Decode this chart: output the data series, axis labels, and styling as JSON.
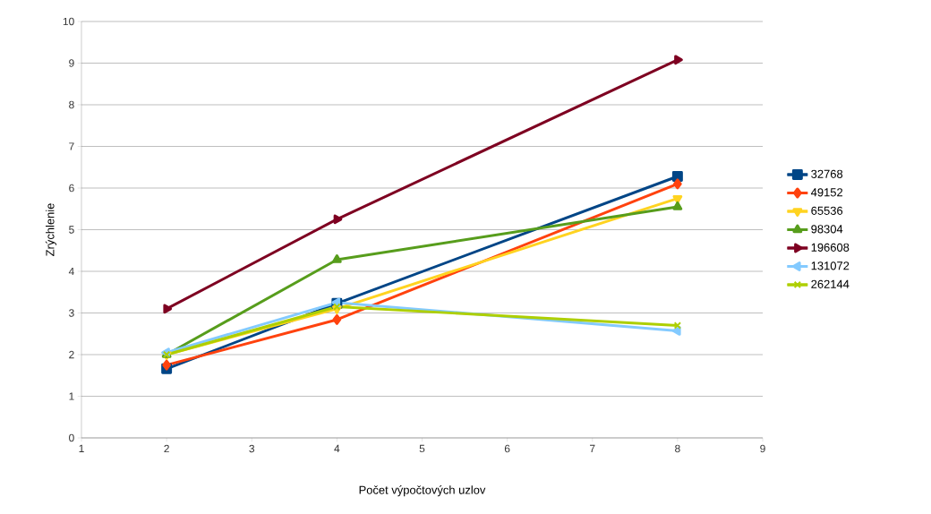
{
  "chart_data": {
    "type": "line",
    "xlabel": "Počet výpočtových uzlov",
    "ylabel": "Zrýchlenie",
    "x": [
      2,
      4,
      8
    ],
    "series": [
      {
        "name": "32768",
        "color": "#004586",
        "marker": "square",
        "values": [
          1.66,
          3.23,
          6.28
        ]
      },
      {
        "name": "49152",
        "color": "#ff420e",
        "marker": "diamond",
        "values": [
          1.75,
          2.84,
          6.1
        ]
      },
      {
        "name": "65536",
        "color": "#ffd320",
        "marker": "triangle-down",
        "values": [
          2.0,
          3.1,
          5.75
        ]
      },
      {
        "name": "98304",
        "color": "#579d1c",
        "marker": "triangle",
        "values": [
          2.0,
          4.28,
          5.55
        ]
      },
      {
        "name": "196608",
        "color": "#7e0021",
        "marker": "triangle-right",
        "values": [
          3.1,
          5.25,
          9.08
        ]
      },
      {
        "name": "131072",
        "color": "#83caff",
        "marker": "triangle-left",
        "values": [
          2.05,
          3.25,
          2.57
        ]
      },
      {
        "name": "262144",
        "color": "#aecf00",
        "marker": "cross",
        "values": [
          2.0,
          3.15,
          2.7
        ]
      }
    ],
    "xlim": [
      1,
      9
    ],
    "xticks": [
      1,
      2,
      3,
      4,
      5,
      6,
      7,
      8,
      9
    ],
    "ylim": [
      0,
      10
    ],
    "yticks": [
      0,
      1,
      2,
      3,
      4,
      5,
      6,
      7,
      8,
      9,
      10
    ],
    "grid": "y",
    "legend": "right",
    "line_style": "solid"
  }
}
